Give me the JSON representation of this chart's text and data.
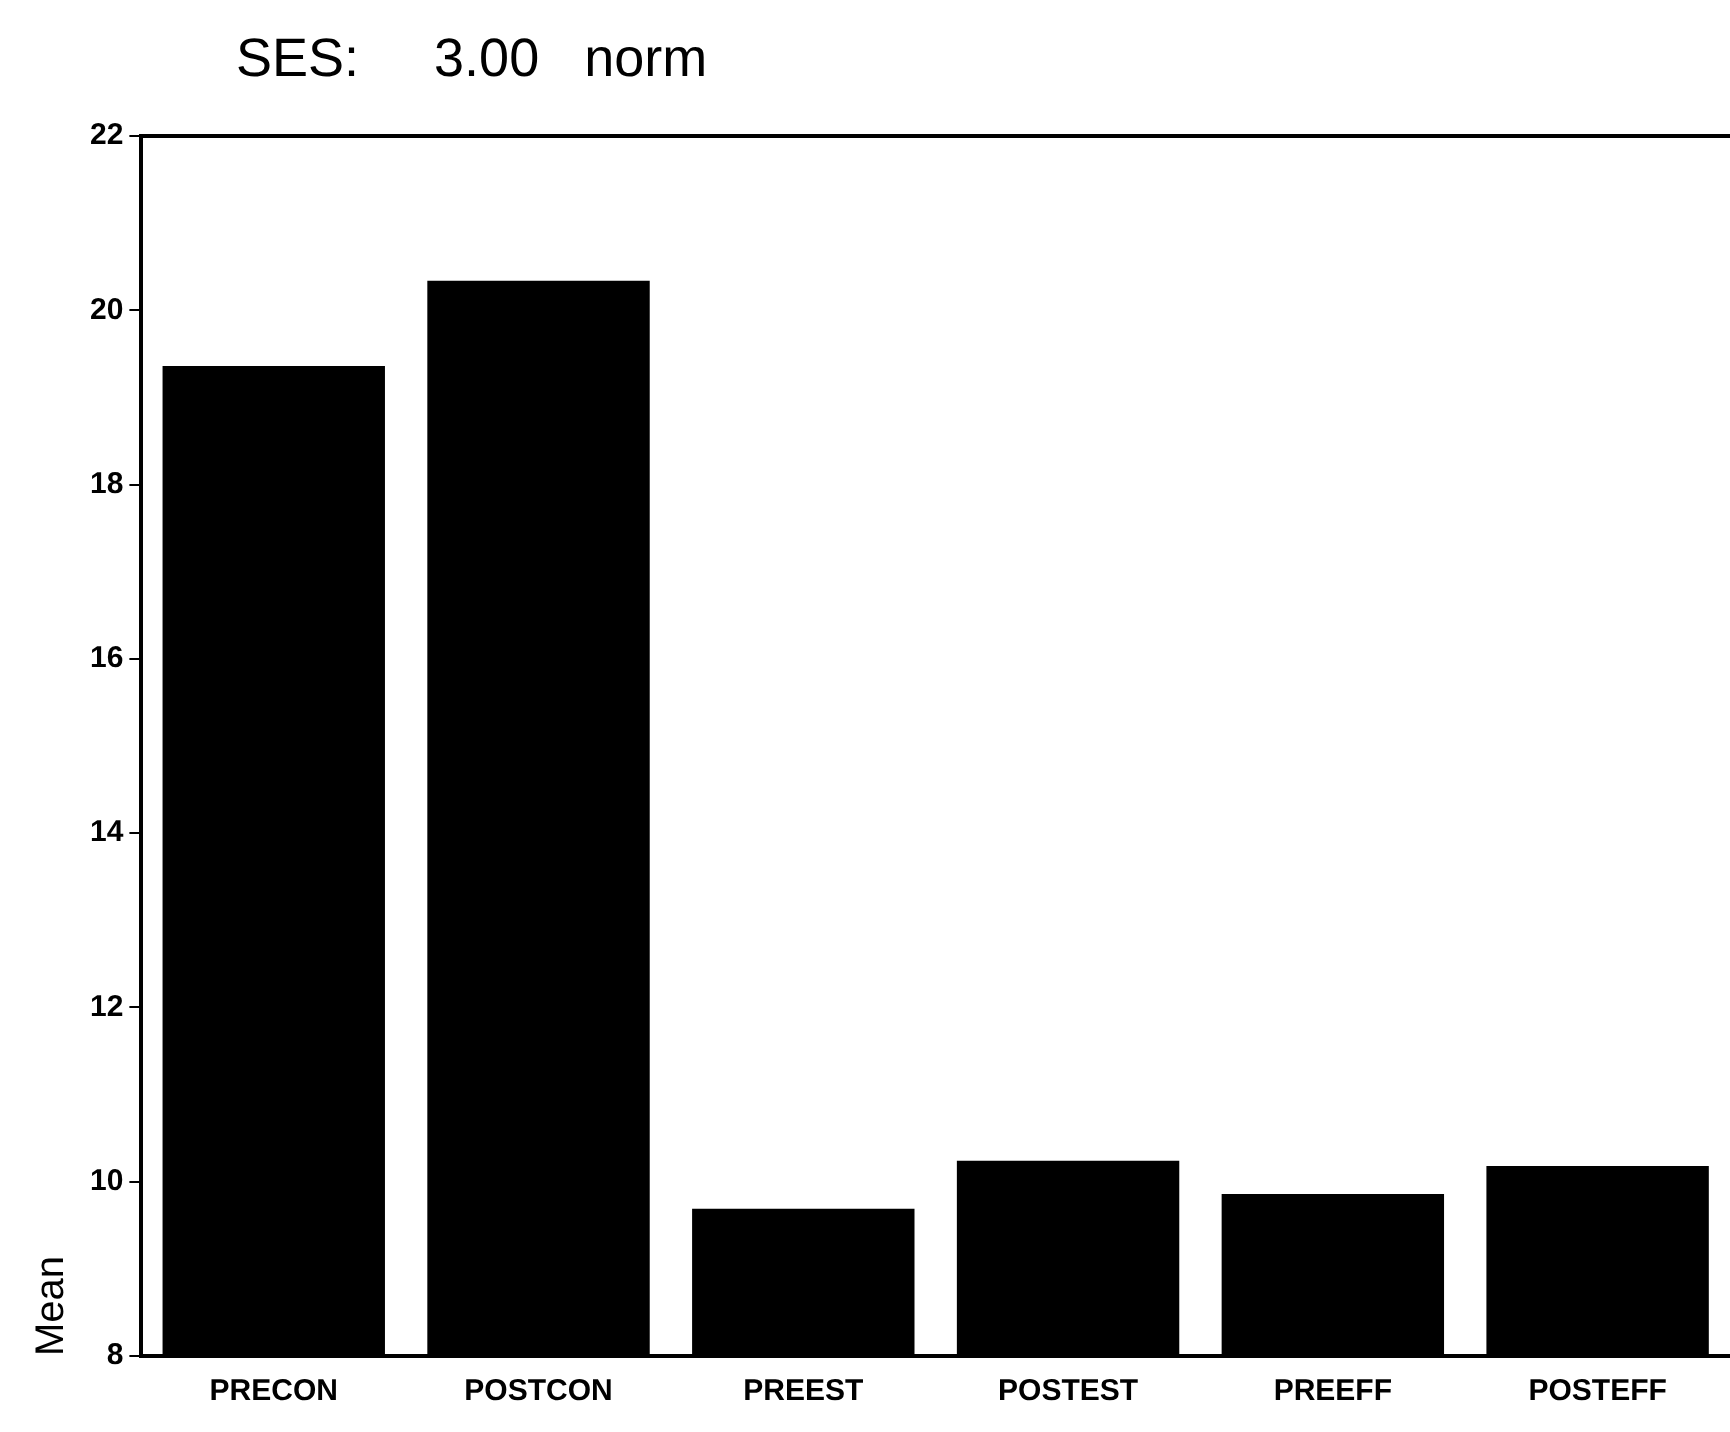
{
  "chart_data": {
    "type": "bar",
    "title": "SES:     3.00   norm",
    "ylabel": "Mean",
    "categories": [
      "PRECON",
      "POSTCON",
      "PREEST",
      "POSTEST",
      "PREEFF",
      "POSTEFF"
    ],
    "values": [
      19.36,
      20.34,
      9.69,
      10.24,
      9.86,
      10.18
    ],
    "color": "#000000",
    "ylim": [
      8,
      22
    ],
    "yticks": [
      8,
      10,
      12,
      14,
      16,
      18,
      20,
      22
    ],
    "grid": false,
    "legend": false
  }
}
